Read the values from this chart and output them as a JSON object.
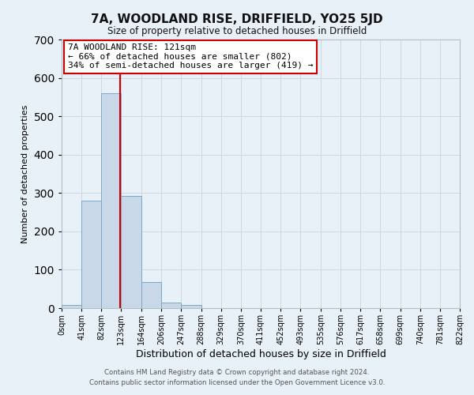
{
  "title": "7A, WOODLAND RISE, DRIFFIELD, YO25 5JD",
  "subtitle": "Size of property relative to detached houses in Driffield",
  "xlabel": "Distribution of detached houses by size in Driffield",
  "ylabel": "Number of detached properties",
  "bin_edges": [
    0,
    41,
    82,
    123,
    164,
    206,
    247,
    288,
    329,
    370,
    411,
    452,
    493,
    535,
    576,
    617,
    658,
    699,
    740,
    781,
    822
  ],
  "bar_heights": [
    8,
    280,
    560,
    292,
    68,
    14,
    9,
    0,
    0,
    0,
    0,
    0,
    0,
    0,
    0,
    0,
    0,
    0,
    0,
    0
  ],
  "bar_color": "#c8d8e8",
  "bar_edge_color": "#7aaac8",
  "vline_x": 121,
  "vline_color": "#cc0000",
  "ylim": [
    0,
    700
  ],
  "yticks": [
    0,
    100,
    200,
    300,
    400,
    500,
    600,
    700
  ],
  "tick_labels": [
    "0sqm",
    "41sqm",
    "82sqm",
    "123sqm",
    "164sqm",
    "206sqm",
    "247sqm",
    "288sqm",
    "329sqm",
    "370sqm",
    "411sqm",
    "452sqm",
    "493sqm",
    "535sqm",
    "576sqm",
    "617sqm",
    "658sqm",
    "699sqm",
    "740sqm",
    "781sqm",
    "822sqm"
  ],
  "annotation_title": "7A WOODLAND RISE: 121sqm",
  "annotation_line1": "← 66% of detached houses are smaller (802)",
  "annotation_line2": "34% of semi-detached houses are larger (419) →",
  "annotation_box_color": "#ffffff",
  "annotation_box_edge_color": "#cc0000",
  "grid_color": "#ccd8e4",
  "background_color": "#e8f0f8",
  "footer1": "Contains HM Land Registry data © Crown copyright and database right 2024.",
  "footer2": "Contains public sector information licensed under the Open Government Licence v3.0."
}
